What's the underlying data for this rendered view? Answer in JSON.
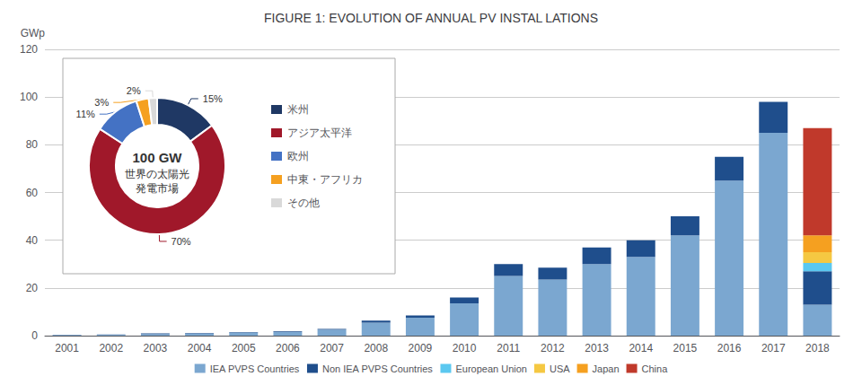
{
  "chart_data": [
    {
      "type": "bar",
      "title": "FIGURE 1: EVOLUTION OF ANNUAL PV INSTAL LATIONS",
      "ylabel": "GWp",
      "categories": [
        2001,
        2002,
        2003,
        2004,
        2005,
        2006,
        2007,
        2008,
        2009,
        2010,
        2011,
        2012,
        2013,
        2014,
        2015,
        2016,
        2017,
        2018
      ],
      "series": [
        {
          "name": "IEA PVPS Countries",
          "color": "#7BA7D0",
          "values": [
            0.3,
            0.4,
            0.7,
            0.9,
            1.3,
            1.5,
            2.5,
            5.5,
            7.5,
            13.5,
            25.0,
            23.5,
            30.0,
            33.0,
            42.0,
            65.0,
            85.0,
            13.0
          ]
        },
        {
          "name": "Non IEA PVPS Countries",
          "color": "#1F4E8C",
          "values": [
            0.1,
            0.1,
            0.2,
            0.2,
            0.2,
            0.3,
            0.3,
            0.8,
            1.0,
            2.5,
            5.0,
            5.0,
            7.0,
            7.0,
            8.0,
            10.0,
            13.0,
            14.0
          ]
        },
        {
          "name": "European Union",
          "color": "#5BC8F0",
          "values": [
            0.0,
            0.0,
            0.0,
            0.0,
            0.0,
            0.0,
            0.0,
            0.0,
            0.0,
            0.0,
            0.0,
            0.0,
            0.0,
            0.0,
            0.0,
            0.0,
            0.0,
            3.5
          ]
        },
        {
          "name": "USA",
          "color": "#F5C842",
          "values": [
            0.0,
            0.0,
            0.0,
            0.0,
            0.0,
            0.0,
            0.0,
            0.0,
            0.0,
            0.0,
            0.0,
            0.0,
            0.0,
            0.0,
            0.0,
            0.0,
            0.0,
            4.5
          ]
        },
        {
          "name": "Japan",
          "color": "#F5A020",
          "values": [
            0.0,
            0.0,
            0.0,
            0.0,
            0.0,
            0.0,
            0.0,
            0.0,
            0.0,
            0.0,
            0.0,
            0.0,
            0.0,
            0.0,
            0.0,
            0.0,
            0.0,
            7.0
          ]
        },
        {
          "name": "China",
          "color": "#C0392B",
          "values": [
            0.0,
            0.0,
            0.0,
            0.0,
            0.0,
            0.0,
            0.0,
            0.0,
            0.0,
            0.0,
            0.0,
            0.0,
            0.0,
            0.0,
            0.0,
            0.0,
            0.0,
            45.0
          ]
        }
      ],
      "ylim": [
        0,
        120
      ],
      "yticks": [
        0,
        20,
        40,
        60,
        80,
        100,
        120
      ],
      "grid": true,
      "stacked": true,
      "legend": "bottom"
    },
    {
      "type": "pie",
      "categories": [
        "米州",
        "アジア太平洋",
        "欧州",
        "中東・アフリカ",
        "その他"
      ],
      "values": [
        15,
        70,
        11,
        3,
        2
      ],
      "colors": [
        "#1F3864",
        "#A0182A",
        "#4472C4",
        "#F5A020",
        "#D9D9D9"
      ],
      "data_labels": true,
      "value_labels": [
        "15%",
        "70%",
        "11%",
        "3%",
        "2%"
      ],
      "annotations": [
        "100 GW",
        "世界の太陽光",
        "発電市場"
      ],
      "legend": "right"
    }
  ]
}
